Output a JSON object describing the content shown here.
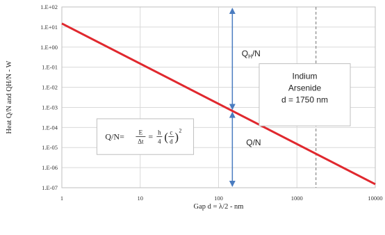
{
  "chart_data": {
    "type": "line",
    "title": "",
    "xlabel": "Gap d = λ/2 - nm",
    "ylabel": "Heat Q/N and QH/N - W",
    "x_scale": "log",
    "y_scale": "log",
    "xlim": [
      1,
      10000
    ],
    "ylim": [
      1e-07,
      100
    ],
    "x_ticks": [
      {
        "value": 1,
        "label": "1"
      },
      {
        "value": 10,
        "label": "10"
      },
      {
        "value": 100,
        "label": "100"
      },
      {
        "value": 1000,
        "label": "1000"
      },
      {
        "value": 10000,
        "label": "10000"
      }
    ],
    "y_ticks": [
      {
        "value": 100,
        "label": "1.E+02"
      },
      {
        "value": 10,
        "label": "1.E+01"
      },
      {
        "value": 1,
        "label": "1.E+00"
      },
      {
        "value": 0.1,
        "label": "1.E-01"
      },
      {
        "value": 0.01,
        "label": "1.E-02"
      },
      {
        "value": 0.001,
        "label": "1.E-03"
      },
      {
        "value": 0.0001,
        "label": "1.E-04"
      },
      {
        "value": 1e-05,
        "label": "1.E-05"
      },
      {
        "value": 1e-06,
        "label": "1.E-06"
      },
      {
        "value": 1e-07,
        "label": "1.E-07"
      }
    ],
    "grid": true,
    "series": [
      {
        "color": "#e0282e",
        "x": [
          1,
          10000
        ],
        "y": [
          15,
          1.5e-07
        ]
      }
    ],
    "annotations": {
      "vertical_line": {
        "x": 1750,
        "style": "dashed",
        "color": "#888888"
      },
      "arrow_x": 150,
      "qh_arrow": {
        "from_y": 100,
        "to_y": 0.00067
      },
      "q_arrow": {
        "from_y": 0.00067,
        "to_y": 1e-07
      },
      "qh_label": {
        "text": "Q",
        "subscript": "H",
        "suffix": "/N",
        "x": 260,
        "y": 0.35
      },
      "q_label": {
        "text": "Q/N",
        "x": 280,
        "y": 1.3e-05
      },
      "material_box": {
        "lines": [
          "Indium",
          "Arsenide",
          "d = 1750 nm"
        ],
        "x_range": [
          330,
          4800
        ],
        "y_range": [
          0.00012,
          0.15
        ]
      },
      "formula": {
        "lhs": "Q/N=",
        "frac1_num": "E",
        "frac1_den": "Δt",
        "eq": "=",
        "frac2_num": "h",
        "frac2_den": "4",
        "inner_num": "c",
        "inner_den": "d",
        "exponent": "2",
        "x_range": [
          2.8,
          48
        ],
        "y_range": [
          4.5e-06,
          0.00027
        ]
      }
    },
    "colors": {
      "line": "#e0282e",
      "arrow": "#4a7cc0",
      "grid": "#d9d9d9",
      "box_border": "#bfbfbf"
    }
  }
}
